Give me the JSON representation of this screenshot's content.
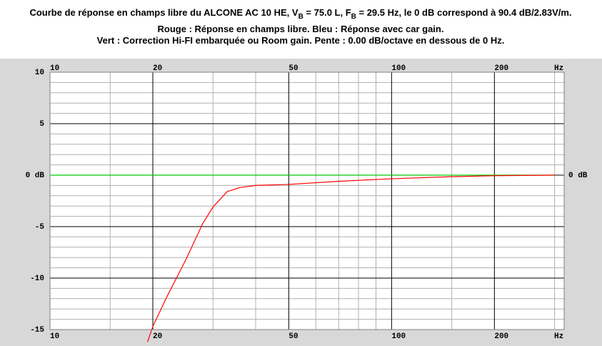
{
  "chart_data": {
    "type": "line",
    "title_parts": [
      "Courbe de réponse en champs libre du ALCONE AC 10 HE, V",
      "B",
      " = 75.0 L, F",
      "B",
      " = 29.5 Hz, le 0 dB correspond à 90.4 dB/2.83V/m."
    ],
    "subtitle_lines": [
      "Rouge : Réponse en champs libre. Bleu : Réponse avec car gain.",
      "Vert : Correction Hi-FI embarquée ou Room gain. Pente : 0.00 dB/octave en dessous de 0 Hz."
    ],
    "x_unit": "Hz",
    "xscale": "log",
    "xlim": [
      10,
      320
    ],
    "xticks": [
      10,
      20,
      50,
      100,
      200
    ],
    "x_minor_ticks": [
      15,
      30,
      40,
      60,
      70,
      80,
      90,
      150,
      300
    ],
    "ylim": [
      -15,
      10
    ],
    "yticks": [
      10,
      5,
      {
        "value": 0,
        "label": "0 dB"
      },
      -5,
      -10,
      -15
    ],
    "y_minor_ticks": [
      9,
      8,
      7,
      6,
      4,
      3,
      2,
      1,
      -1,
      -2,
      -3,
      -4,
      -6,
      -7,
      -8,
      -9,
      -11,
      -12,
      -13,
      -14
    ],
    "grid": true,
    "series": [
      {
        "color": "#00cc00",
        "x": [
          10,
          300
        ],
        "values": [
          0,
          0
        ]
      },
      {
        "color": "#ff0000",
        "x": [
          19.3,
          20,
          22,
          25,
          28,
          30,
          33,
          36,
          40,
          50,
          70,
          100,
          150,
          200,
          300
        ],
        "values": [
          -16.2,
          -14.7,
          -11.8,
          -8.2,
          -4.7,
          -3.1,
          -1.6,
          -1.2,
          -1.0,
          -0.9,
          -0.6,
          -0.35,
          -0.15,
          -0.05,
          0
        ]
      }
    ]
  }
}
